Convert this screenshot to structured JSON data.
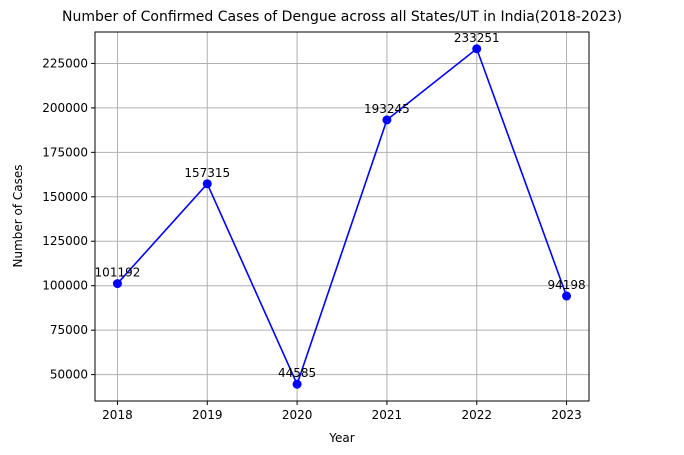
{
  "chart_data": {
    "type": "line",
    "title": "Number of Confirmed Cases of Dengue across all States/UT in India(2018-2023)",
    "xlabel": "Year",
    "ylabel": "Number of Cases",
    "x": [
      2018,
      2019,
      2020,
      2021,
      2022,
      2023
    ],
    "x_tick_labels": [
      "2018",
      "2019",
      "2020",
      "2021",
      "2022",
      "2023"
    ],
    "series": [
      {
        "values": [
          101192,
          157315,
          44585,
          193245,
          233251,
          94198
        ],
        "color": "#0000ff",
        "marker": "circle"
      }
    ],
    "data_labels": [
      "101192",
      "157315",
      "44585",
      "193245",
      "233251",
      "94198"
    ],
    "y_ticks": [
      50000,
      75000,
      100000,
      125000,
      150000,
      175000,
      200000,
      225000
    ],
    "y_tick_labels": [
      "50000",
      "75000",
      "100000",
      "125000",
      "150000",
      "175000",
      "200000",
      "225000"
    ],
    "xlim": [
      2017.75,
      2023.25
    ],
    "ylim": [
      35152,
      242684
    ],
    "grid": true,
    "legend": "none"
  }
}
